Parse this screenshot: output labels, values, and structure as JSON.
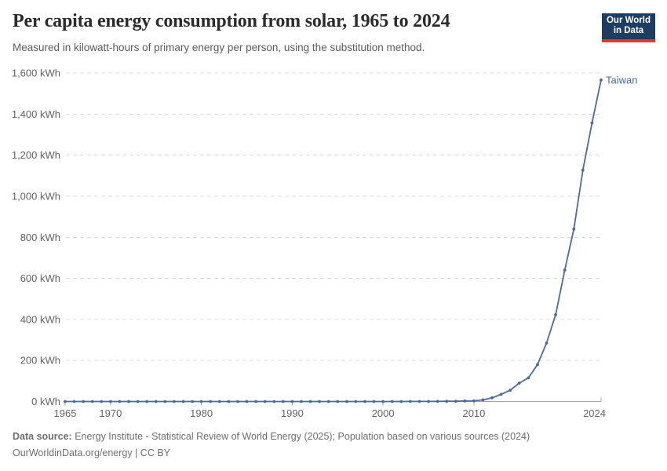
{
  "header": {
    "title": "Per capita energy consumption from solar, 1965 to 2024",
    "subtitle": "Measured in kilowatt-hours of primary energy per person, using the substitution method.",
    "logo": {
      "line1": "Our World",
      "line2": "in Data"
    }
  },
  "chart_data": {
    "type": "line",
    "title": "Per capita energy consumption from solar, 1965 to 2024",
    "xlabel": "",
    "ylabel": "kWh",
    "xlim": [
      1965,
      2024
    ],
    "ylim": [
      0,
      1600
    ],
    "grid": "horizontal-dashed",
    "legend_position": "end-of-line-label",
    "x_ticks": [
      {
        "value": 1965,
        "label": "1965"
      },
      {
        "value": 1970,
        "label": "1970"
      },
      {
        "value": 1980,
        "label": "1980"
      },
      {
        "value": 1990,
        "label": "1990"
      },
      {
        "value": 2000,
        "label": "2000"
      },
      {
        "value": 2010,
        "label": "2010"
      },
      {
        "value": 2024,
        "label": "2024"
      }
    ],
    "y_ticks": [
      {
        "value": 0,
        "label": "0 kWh"
      },
      {
        "value": 200,
        "label": "200 kWh"
      },
      {
        "value": 400,
        "label": "400 kWh"
      },
      {
        "value": 600,
        "label": "600 kWh"
      },
      {
        "value": 800,
        "label": "800 kWh"
      },
      {
        "value": 1000,
        "label": "1,000 kWh"
      },
      {
        "value": 1200,
        "label": "1,200 kWh"
      },
      {
        "value": 1400,
        "label": "1,400 kWh"
      },
      {
        "value": 1600,
        "label": "1,600 kWh"
      }
    ],
    "x": [
      1965,
      1966,
      1967,
      1968,
      1969,
      1970,
      1971,
      1972,
      1973,
      1974,
      1975,
      1976,
      1977,
      1978,
      1979,
      1980,
      1981,
      1982,
      1983,
      1984,
      1985,
      1986,
      1987,
      1988,
      1989,
      1990,
      1991,
      1992,
      1993,
      1994,
      1995,
      1996,
      1997,
      1998,
      1999,
      2000,
      2001,
      2002,
      2003,
      2004,
      2005,
      2006,
      2007,
      2008,
      2009,
      2010,
      2011,
      2012,
      2013,
      2014,
      2015,
      2016,
      2017,
      2018,
      2019,
      2020,
      2021,
      2022,
      2023,
      2024
    ],
    "series": [
      {
        "name": "Taiwan",
        "color": "#4c6a9c",
        "values": [
          0,
          0,
          0,
          0,
          0,
          0,
          0,
          0,
          0,
          0,
          0,
          0,
          0,
          0,
          0,
          0,
          0,
          0,
          0,
          0,
          0,
          0,
          0,
          0,
          0,
          0,
          0,
          0,
          0,
          0,
          0,
          0,
          0,
          0,
          0,
          0,
          0.1,
          0.1,
          0.2,
          0.3,
          0.5,
          0.8,
          1.2,
          1.7,
          2.5,
          3.5,
          8,
          18,
          35,
          55,
          90,
          115,
          180,
          285,
          423,
          640,
          840,
          1127,
          1356,
          1566
        ]
      }
    ]
  },
  "footer": {
    "source_label": "Data source:",
    "source_text": " Energy Institute - Statistical Review of World Energy (2025); Population based on various sources (2024)",
    "link_line": "OurWorldinData.org/energy | CC BY"
  },
  "colors": {
    "line": "#4c6a9c",
    "grid": "#dcdcdc",
    "axis": "#a3a3a3",
    "tick_label": "#636363",
    "title": "#2b2b2b",
    "subtitle": "#5b5b5b",
    "footer": "#6e6e6e",
    "logo_bg": "#1d3d63",
    "logo_bar": "#e0392f"
  }
}
